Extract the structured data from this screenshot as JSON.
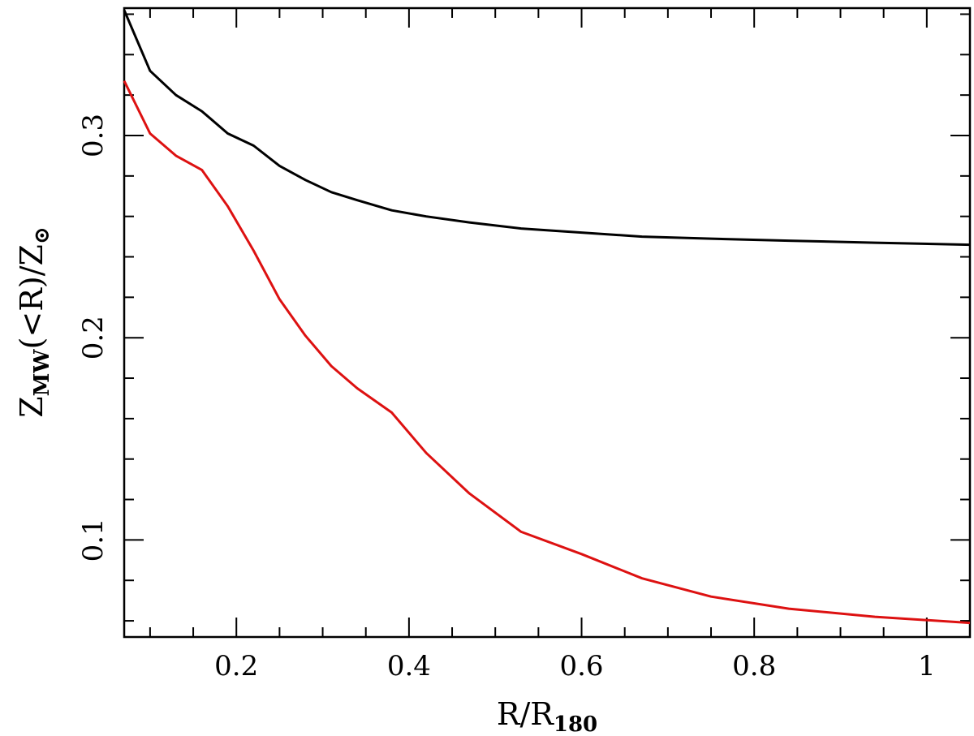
{
  "chart_data": {
    "type": "line",
    "xlabel": {
      "main": "R/R",
      "sub": "180"
    },
    "ylabel": {
      "z1": "Z",
      "sub1": "MW",
      "mid": "(<R)/Z",
      "sub2": "⊙"
    },
    "xlim": [
      0.07,
      1.05
    ],
    "ylim": [
      0.052,
      0.363
    ],
    "x_ticks_major": [
      0.2,
      0.4,
      0.6,
      0.8,
      1.0
    ],
    "x_tick_labels": [
      "0.2",
      "0.4",
      "0.6",
      "0.8",
      "1"
    ],
    "y_ticks_major": [
      0.1,
      0.2,
      0.3
    ],
    "y_tick_labels": [
      "0.1",
      "0.2",
      "0.3"
    ],
    "grid": false,
    "series": [
      {
        "color": "#000000",
        "x": [
          0.07,
          0.1,
          0.13,
          0.16,
          0.19,
          0.22,
          0.25,
          0.28,
          0.31,
          0.34,
          0.38,
          0.42,
          0.47,
          0.53,
          0.6,
          0.67,
          0.75,
          0.84,
          0.94,
          1.05
        ],
        "y": [
          0.362,
          0.332,
          0.32,
          0.312,
          0.301,
          0.295,
          0.285,
          0.278,
          0.272,
          0.268,
          0.263,
          0.26,
          0.257,
          0.254,
          0.252,
          0.25,
          0.249,
          0.248,
          0.247,
          0.246
        ]
      },
      {
        "color": "#dd1111",
        "x": [
          0.07,
          0.1,
          0.13,
          0.16,
          0.19,
          0.22,
          0.25,
          0.28,
          0.31,
          0.34,
          0.38,
          0.42,
          0.47,
          0.53,
          0.6,
          0.67,
          0.75,
          0.84,
          0.94,
          1.05
        ],
        "y": [
          0.327,
          0.301,
          0.29,
          0.283,
          0.265,
          0.243,
          0.219,
          0.201,
          0.186,
          0.175,
          0.163,
          0.143,
          0.123,
          0.104,
          0.093,
          0.081,
          0.072,
          0.066,
          0.062,
          0.059
        ]
      }
    ]
  }
}
